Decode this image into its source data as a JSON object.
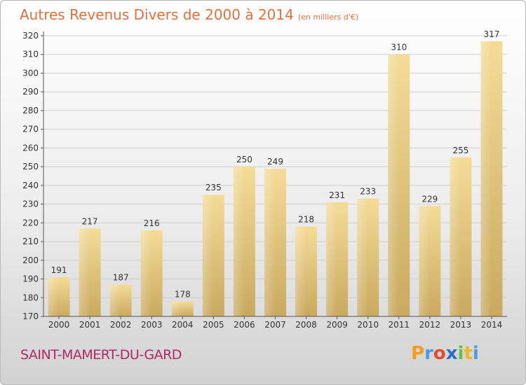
{
  "chart_data": {
    "type": "bar",
    "title": "Autres Revenus Divers de 2000 à 2014",
    "subtitle": "(en milliers d'€)",
    "categories": [
      "2000",
      "2001",
      "2002",
      "2003",
      "2004",
      "2005",
      "2006",
      "2007",
      "2008",
      "2009",
      "2010",
      "2011",
      "2012",
      "2013",
      "2014"
    ],
    "values": [
      191,
      217,
      187,
      216,
      178,
      235,
      250,
      249,
      218,
      231,
      233,
      310,
      229,
      255,
      317
    ],
    "ylim": [
      170,
      320
    ],
    "yticks": [
      170,
      180,
      190,
      200,
      210,
      220,
      230,
      240,
      250,
      260,
      270,
      280,
      290,
      300,
      310,
      320
    ],
    "grid": true,
    "legend": "none",
    "bar_color": "#e6c87f"
  },
  "commune": "SAINT-MAMERT-DU-GARD",
  "logo": {
    "letters": [
      "P",
      "r",
      "o",
      "x",
      "i",
      "t",
      "i"
    ],
    "colors": [
      "#f39c1e",
      "#4a9de0",
      "#e84a2e",
      "#2a6fc9",
      "#6cbf3a",
      "#f3b71e",
      "#4a9de0"
    ]
  }
}
